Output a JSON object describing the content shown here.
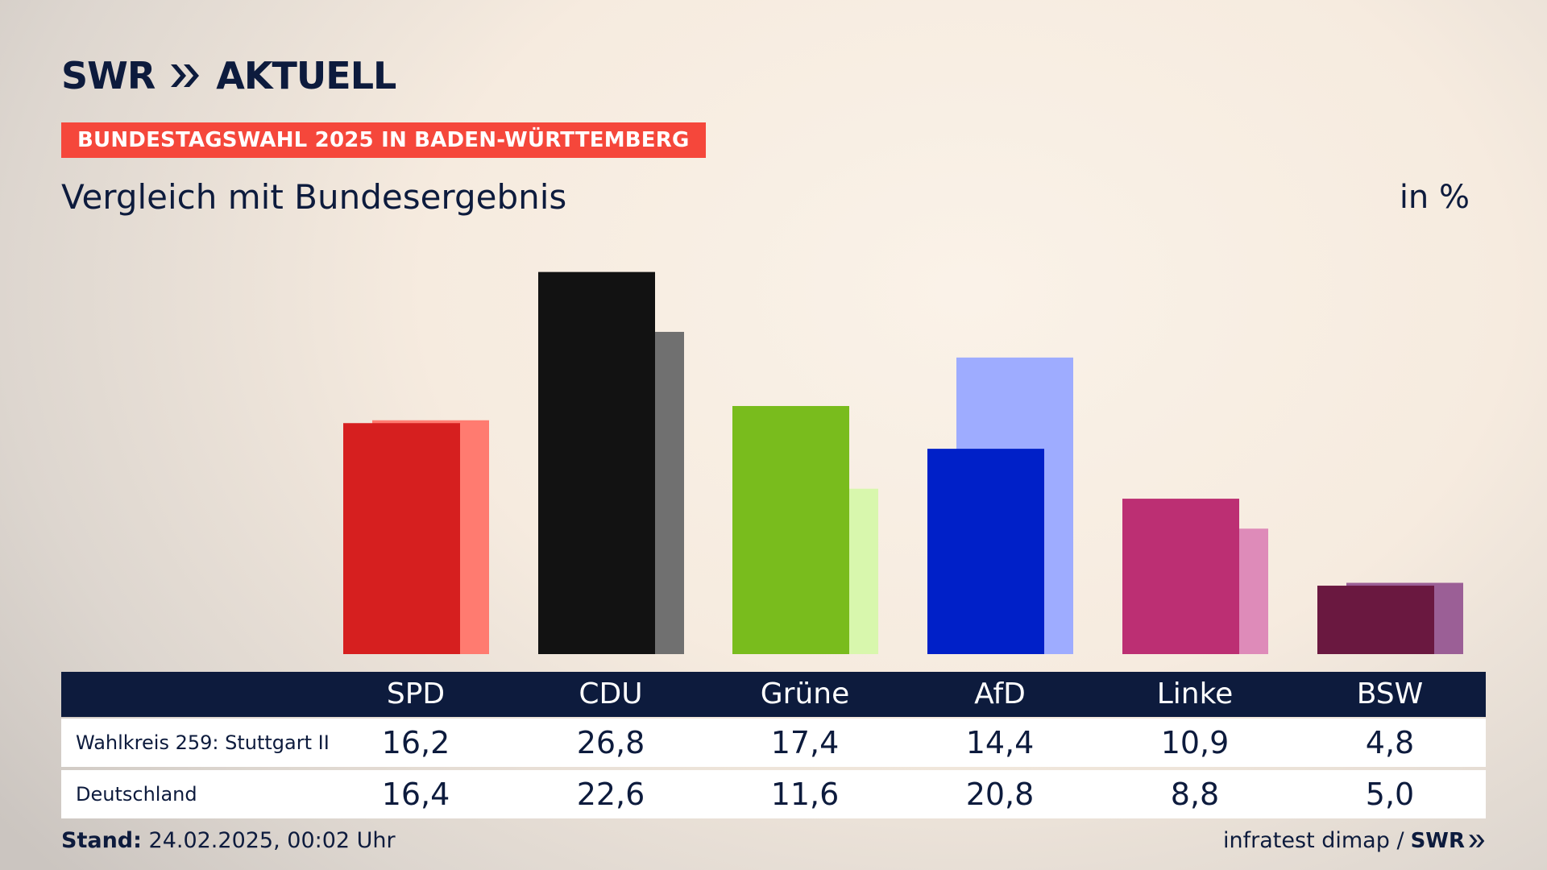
{
  "header": {
    "logo_text_left": "SWR",
    "logo_text_right": "AKTUELL",
    "badge": "BUNDESTAGSWAHL 2025 IN BADEN-WÜRTTEMBERG",
    "subtitle": "Vergleich mit Bundesergebnis",
    "unit": "in %"
  },
  "colors": {
    "navy": "#0d1b3d",
    "badge": "#f5473b"
  },
  "chart_data": {
    "type": "bar",
    "categories": [
      "SPD",
      "CDU",
      "Grüne",
      "AfD",
      "Linke",
      "BSW"
    ],
    "series": [
      {
        "name": "Wahlkreis 259: Stuttgart II",
        "values": [
          16.2,
          26.8,
          17.4,
          14.4,
          10.9,
          4.8
        ]
      },
      {
        "name": "Deutschland",
        "values": [
          16.4,
          22.6,
          11.6,
          20.8,
          8.8,
          5.0
        ]
      }
    ],
    "bar_colors_primary": [
      "#d61f1f",
      "#121212",
      "#79bc1d",
      "#0020c8",
      "#bc2f73",
      "#6a1840"
    ],
    "bar_colors_secondary": [
      "#ff7b70",
      "#707070",
      "#d8f7ad",
      "#9eacff",
      "#de8bb9",
      "#9b5f96"
    ],
    "ylim": [
      0,
      30
    ],
    "grid": false,
    "legend": "table-below"
  },
  "table": {
    "columns": [
      "SPD",
      "CDU",
      "Grüne",
      "AfD",
      "Linke",
      "BSW"
    ],
    "rows": [
      {
        "label": "Wahlkreis 259: Stuttgart II",
        "values": [
          "16,2",
          "26,8",
          "17,4",
          "14,4",
          "10,9",
          "4,8"
        ]
      },
      {
        "label": "Deutschland",
        "values": [
          "16,4",
          "22,6",
          "11,6",
          "20,8",
          "8,8",
          "5,0"
        ]
      }
    ]
  },
  "footer": {
    "stand_label": "Stand:",
    "stand_value": "24.02.2025, 00:02 Uhr",
    "source": "infratest dimap /",
    "source_logo": "SWR"
  }
}
